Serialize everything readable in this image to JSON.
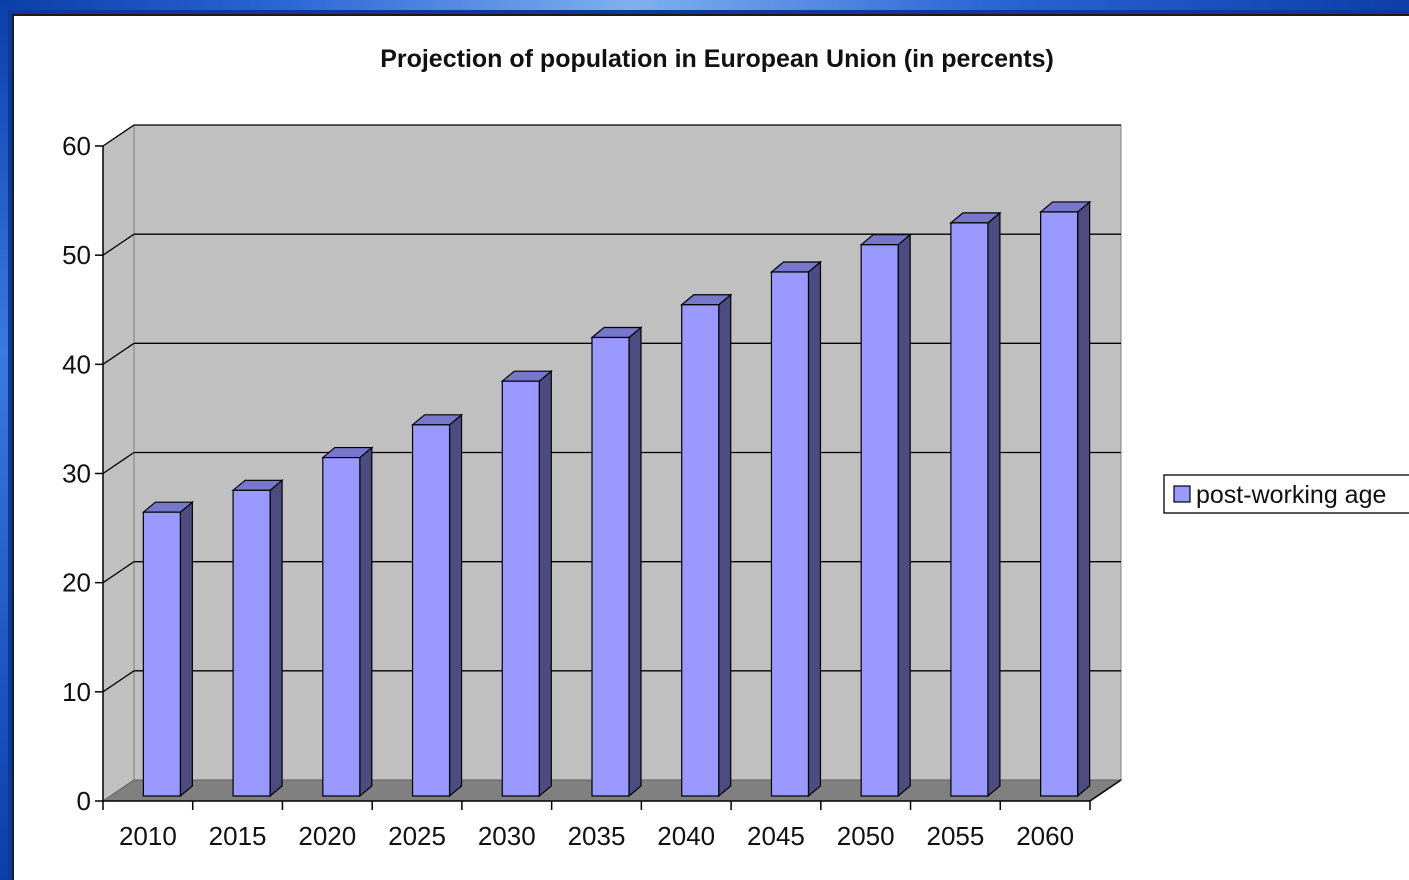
{
  "chart_data": {
    "type": "bar",
    "title": "Projection of population in European Union (in percents)",
    "categories": [
      "2010",
      "2015",
      "2020",
      "2025",
      "2030",
      "2035",
      "2040",
      "2045",
      "2050",
      "2055",
      "2060"
    ],
    "series": [
      {
        "name": "post-working age",
        "values": [
          26,
          28,
          31,
          34,
          38,
          42,
          45,
          48,
          50.5,
          52.5,
          53.5
        ]
      }
    ],
    "ylim": [
      0,
      60
    ],
    "yticks": [
      "0",
      "10",
      "20",
      "30",
      "40",
      "50",
      "60"
    ],
    "grid": true,
    "legend_position": "right",
    "colors": {
      "bar_front": "#9999ff",
      "bar_side": "#4c4c80",
      "bar_top": "#7777cc",
      "wall": "#c0c0c0",
      "floor": "#808080"
    }
  }
}
